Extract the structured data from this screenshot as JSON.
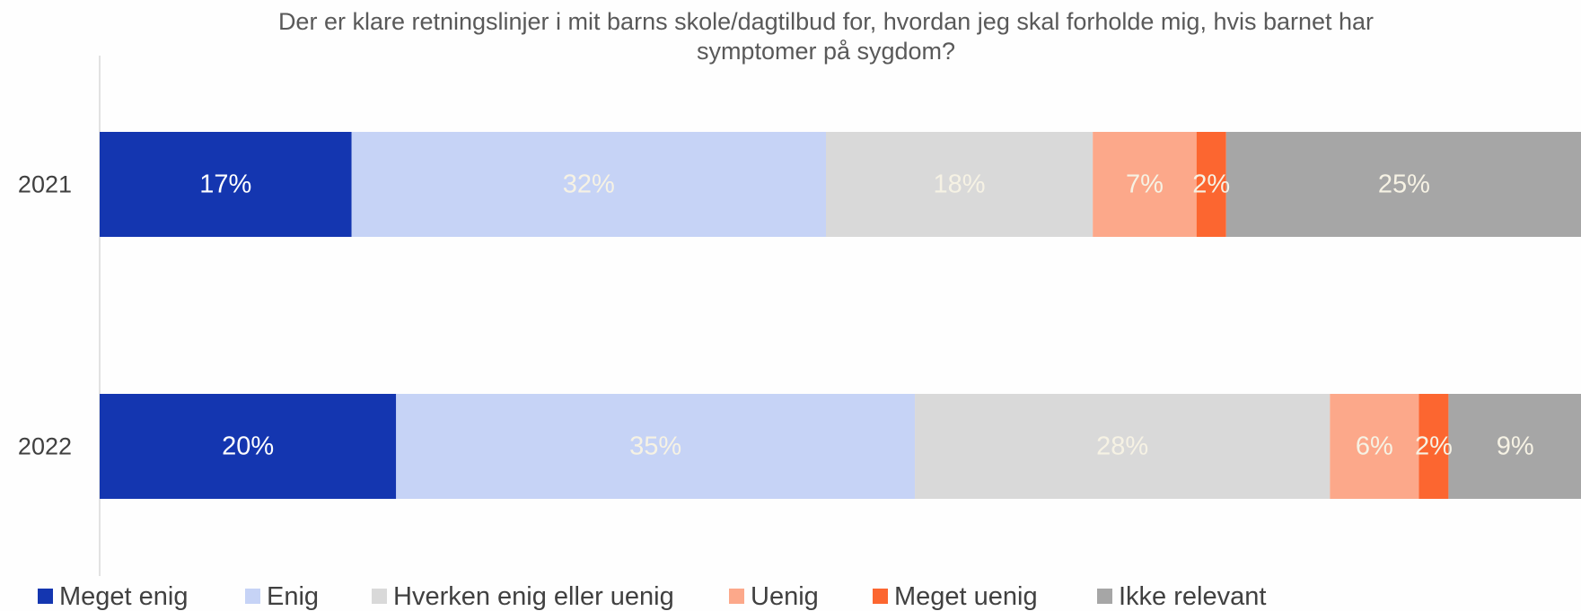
{
  "chart_data": {
    "type": "stacked-bar-horizontal",
    "title": "Der er klare retningslinjer i mit barns skole/dagtilbud for, hvordan jeg skal forholde mig, hvis barnet har symptomer på sygdom?",
    "categories": [
      "2021",
      "2022"
    ],
    "series": [
      {
        "name": "Meget enig",
        "color": "#1436b0",
        "values": [
          17,
          20
        ],
        "value_labels": [
          "17%",
          "20%"
        ]
      },
      {
        "name": "Enig",
        "color": "#c6d3f6",
        "values": [
          32,
          35
        ],
        "value_labels": [
          "32%",
          "35%"
        ]
      },
      {
        "name": "Hverken enig eller uenig",
        "color": "#d9d9d9",
        "values": [
          18,
          28
        ],
        "value_labels": [
          "18%",
          "28%"
        ]
      },
      {
        "name": "Uenig",
        "color": "#fca88a",
        "values": [
          7,
          6
        ],
        "value_labels": [
          "7%",
          "6%"
        ]
      },
      {
        "name": "Meget uenig",
        "color": "#fc6630",
        "values": [
          2,
          2
        ],
        "value_labels": [
          "2%",
          "2%"
        ]
      },
      {
        "name": "Ikke relevant",
        "color": "#a6a6a6",
        "values": [
          25,
          9
        ],
        "value_labels": [
          "25%",
          "9%"
        ]
      }
    ],
    "xlim": [
      0,
      100
    ],
    "legend": "bottom"
  }
}
